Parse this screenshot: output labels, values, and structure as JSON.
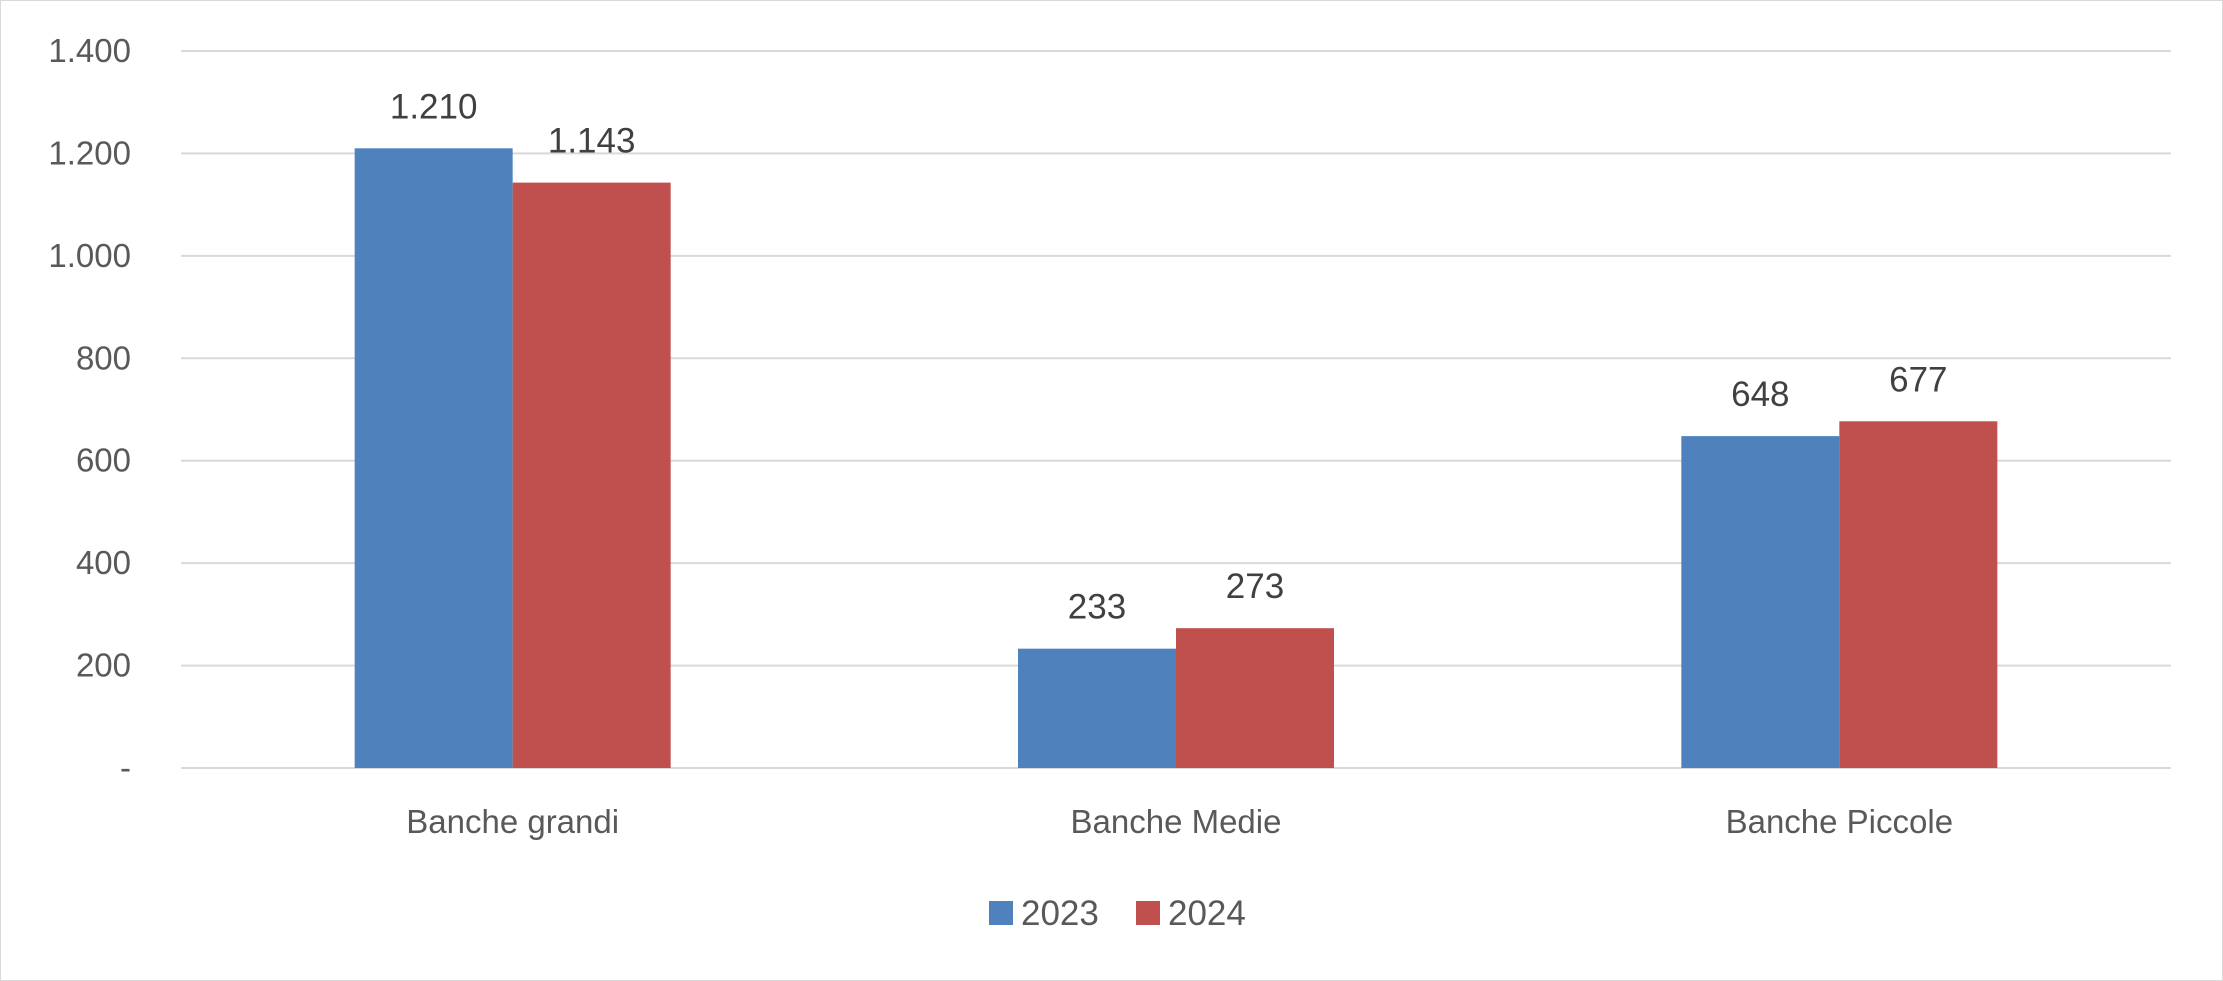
{
  "chart_data": {
    "type": "bar",
    "categories": [
      "Banche grandi",
      "Banche Medie",
      "Banche Piccole"
    ],
    "series": [
      {
        "name": "2023",
        "values": [
          1210,
          233,
          648
        ],
        "labels": [
          "1.210",
          "233",
          "648"
        ],
        "color": "#4F81BD"
      },
      {
        "name": "2024",
        "values": [
          1143,
          273,
          677
        ],
        "labels": [
          "1.143",
          "273",
          "677"
        ],
        "color": "#C0504D"
      }
    ],
    "y_ticks": [
      0,
      200,
      400,
      600,
      800,
      1000,
      1200,
      1400
    ],
    "y_tick_labels": [
      "-",
      "200",
      "400",
      "600",
      "800",
      "1.000",
      "1.200",
      "1.400"
    ],
    "ylim": [
      0,
      1400
    ],
    "title": "",
    "xlabel": "",
    "ylabel": "",
    "grid": true,
    "legend_position": "bottom",
    "gridline_color": "#d9d9d9"
  }
}
